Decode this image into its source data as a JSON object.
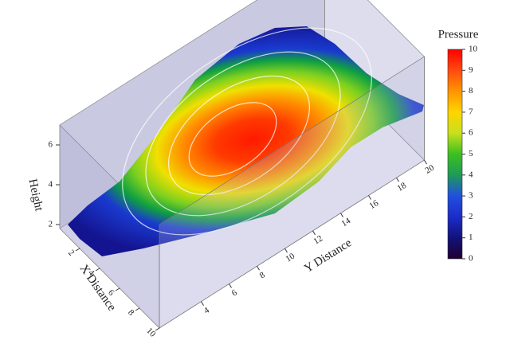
{
  "chart_data": {
    "type": "surface3d",
    "xlabel": "X Distance",
    "ylabel": "Y Distance",
    "zlabel": "Height",
    "xlim": [
      0,
      10
    ],
    "xticks": [
      2,
      4,
      6,
      8,
      10
    ],
    "ylim": [
      1,
      20
    ],
    "yticks": [
      4,
      6,
      8,
      10,
      12,
      14,
      16,
      18,
      20
    ],
    "zlim": [
      1.8,
      7
    ],
    "zticks": [
      2,
      4,
      6
    ],
    "colorbar": {
      "title": "Pressure",
      "lim": [
        0,
        10
      ],
      "ticks": [
        0,
        1,
        2,
        3,
        4,
        5,
        6,
        7,
        8,
        9,
        10
      ],
      "colors": [
        "#200030",
        "#12127a",
        "#1c2cc8",
        "#2050e0",
        "#1e9a58",
        "#3cc020",
        "#c8e01c",
        "#ffd400",
        "#ff9400",
        "#ff4a10",
        "#ff0000"
      ]
    }
  }
}
